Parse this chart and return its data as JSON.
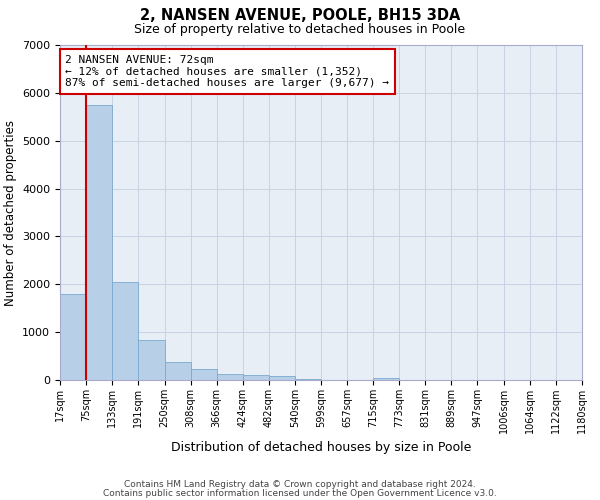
{
  "title": "2, NANSEN AVENUE, POOLE, BH15 3DA",
  "subtitle": "Size of property relative to detached houses in Poole",
  "xlabel": "Distribution of detached houses by size in Poole",
  "ylabel": "Number of detached properties",
  "bins": [
    17,
    75,
    133,
    191,
    250,
    308,
    366,
    424,
    482,
    540,
    599,
    657,
    715,
    773,
    831,
    889,
    947,
    1006,
    1064,
    1122,
    1180
  ],
  "bin_labels": [
    "17sqm",
    "75sqm",
    "133sqm",
    "191sqm",
    "250sqm",
    "308sqm",
    "366sqm",
    "424sqm",
    "482sqm",
    "540sqm",
    "599sqm",
    "657sqm",
    "715sqm",
    "773sqm",
    "831sqm",
    "889sqm",
    "947sqm",
    "1006sqm",
    "1064sqm",
    "1122sqm",
    "1180sqm"
  ],
  "values": [
    1800,
    5750,
    2050,
    830,
    380,
    240,
    130,
    95,
    75,
    30,
    10,
    5,
    50,
    0,
    0,
    0,
    0,
    0,
    0,
    0
  ],
  "bar_color": "#b8cfe8",
  "bar_edge_color": "#7aaad0",
  "property_size": 72,
  "vline_x": 75,
  "vline_color": "#cc0000",
  "annotation_text": "2 NANSEN AVENUE: 72sqm\n← 12% of detached houses are smaller (1,352)\n87% of semi-detached houses are larger (9,677) →",
  "annotation_box_facecolor": "white",
  "annotation_box_edgecolor": "#cc0000",
  "ylim": [
    0,
    7000
  ],
  "yticks": [
    0,
    1000,
    2000,
    3000,
    4000,
    5000,
    6000,
    7000
  ],
  "grid_color": "#c8d4e4",
  "background_color": "#e8eef6",
  "footer_line1": "Contains HM Land Registry data © Crown copyright and database right 2024.",
  "footer_line2": "Contains public sector information licensed under the Open Government Licence v3.0."
}
